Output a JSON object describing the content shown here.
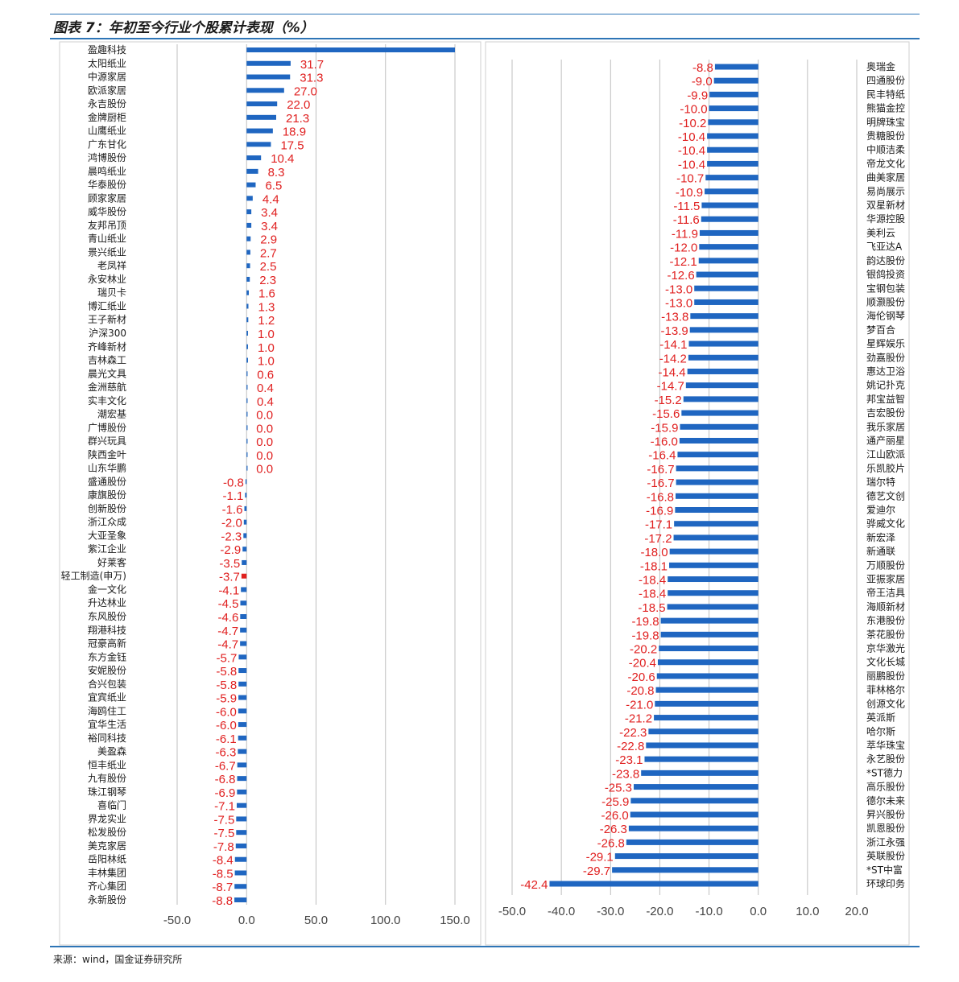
{
  "title": "图表 7：年初至今行业个股累计表现（%）",
  "source": "来源：wind，国金证券研究所",
  "colors": {
    "bar": "#1f66c1",
    "highlight": "#e0201e",
    "label": "#e02020",
    "grid": "#bfbfbf",
    "rule": "#2e75b6"
  },
  "chart_data": [
    {
      "type": "bar",
      "orientation": "horizontal",
      "xlim": [
        -50,
        150
      ],
      "xticks": [
        "-50.0",
        "0.0",
        "50.0",
        "100.0",
        "150.0"
      ],
      "grid": true,
      "categories": [
        "盈趣科技",
        "太阳纸业",
        "中源家居",
        "欧派家居",
        "永吉股份",
        "金牌厨柜",
        "山鹰纸业",
        "广东甘化",
        "鸿博股份",
        "晨鸣纸业",
        "华泰股份",
        "顾家家居",
        "威华股份",
        "友邦吊顶",
        "青山纸业",
        "景兴纸业",
        "老凤祥",
        "永安林业",
        "瑞贝卡",
        "博汇纸业",
        "王子新材",
        "沪深300",
        "齐峰新材",
        "吉林森工",
        "晨光文具",
        "金洲慈航",
        "实丰文化",
        "潮宏基",
        "广博股份",
        "群兴玩具",
        "陕西金叶",
        "山东华鹏",
        "盛通股份",
        "康旗股份",
        "创新股份",
        "浙江众成",
        "大亚圣象",
        "紫江企业",
        "好莱客",
        "轻工制造(申万)",
        "金一文化",
        "升达林业",
        "东风股份",
        "翔港科技",
        "冠豪高新",
        "东方金钰",
        "安妮股份",
        "合兴包装",
        "宜宾纸业",
        "海鸥住工",
        "宜华生活",
        "裕同科技",
        "美盈森",
        "恒丰纸业",
        "九有股份",
        "珠江钢琴",
        "喜临门",
        "界龙实业",
        "松发股份",
        "美克家居",
        "岳阳林纸",
        "丰林集团",
        "齐心集团",
        "永新股份"
      ],
      "values": [
        150,
        31.7,
        31.3,
        27.0,
        22.0,
        21.3,
        18.9,
        17.5,
        10.4,
        8.3,
        6.5,
        4.4,
        3.4,
        3.4,
        2.9,
        2.7,
        2.5,
        2.3,
        1.6,
        1.3,
        1.2,
        1.0,
        1.0,
        1.0,
        0.6,
        0.4,
        0.4,
        0.0,
        0.0,
        0.0,
        0.0,
        0.0,
        -0.8,
        -1.1,
        -1.6,
        -2.0,
        -2.3,
        -2.9,
        -3.5,
        -3.7,
        -4.1,
        -4.5,
        -4.6,
        -4.7,
        -4.7,
        -5.7,
        -5.8,
        -5.8,
        -5.9,
        -6.0,
        -6.0,
        -6.1,
        -6.3,
        -6.7,
        -6.8,
        -6.9,
        -7.1,
        -7.5,
        -7.5,
        -7.8,
        -8.4,
        -8.5,
        -8.7,
        -8.8
      ],
      "value_labels": [
        "",
        "31.7",
        "31.3",
        "27.0",
        "22.0",
        "21.3",
        "18.9",
        "17.5",
        "10.4",
        "8.3",
        "6.5",
        "4.4",
        "3.4",
        "3.4",
        "2.9",
        "2.7",
        "2.5",
        "2.3",
        "1.6",
        "1.3",
        "1.2",
        "1.0",
        "1.0",
        "1.0",
        "0.6",
        "0.4",
        "0.4",
        "0.0",
        "0.0",
        "0.0",
        "0.0",
        "0.0",
        "-0.8",
        "-1.1",
        "-1.6",
        "-2.0",
        "-2.3",
        "-2.9",
        "-3.5",
        "-3.7",
        "-4.1",
        "-4.5",
        "-4.6",
        "-4.7",
        "-4.7",
        "-5.7",
        "-5.8",
        "-5.8",
        "-5.9",
        "-6.0",
        "-6.0",
        "-6.1",
        "-6.3",
        "-6.7",
        "-6.8",
        "-6.9",
        "-7.1",
        "-7.5",
        "-7.5",
        "-7.8",
        "-8.4",
        "-8.5",
        "-8.7",
        "-8.8"
      ],
      "highlight": [
        "轻工制造(申万)"
      ]
    },
    {
      "type": "bar",
      "orientation": "horizontal",
      "xlim": [
        -50,
        20
      ],
      "xticks": [
        "-50.0",
        "-40.0",
        "-30.0",
        "-20.0",
        "-10.0",
        "0.0",
        "10.0",
        "20.0"
      ],
      "grid": true,
      "categories": [
        "奥瑞金",
        "四通股份",
        "民丰特纸",
        "熊猫金控",
        "明牌珠宝",
        "贵糖股份",
        "中顺洁柔",
        "帝龙文化",
        "曲美家居",
        "易尚展示",
        "双星新材",
        "华源控股",
        "美利云",
        "飞亚达A",
        "韵达股份",
        "银鸽投资",
        "宝钢包装",
        "顺灏股份",
        "海伦钢琴",
        "梦百合",
        "星辉娱乐",
        "劲嘉股份",
        "惠达卫浴",
        "姚记扑克",
        "邦宝益智",
        "吉宏股份",
        "我乐家居",
        "通产丽星",
        "江山欧派",
        "乐凯胶片",
        "瑞尔特",
        "德艺文创",
        "爱迪尔",
        "骅威文化",
        "新宏泽",
        "新通联",
        "万顺股份",
        "亚振家居",
        "帝王洁具",
        "海顺新材",
        "东港股份",
        "茶花股份",
        "京华激光",
        "文化长城",
        "丽鹏股份",
        "菲林格尔",
        "创源文化",
        "英派斯",
        "哈尔斯",
        "萃华珠宝",
        "永艺股份",
        "*ST德力",
        "高乐股份",
        "德尔未来",
        "昇兴股份",
        "凯恩股份",
        "浙江永强",
        "英联股份",
        "*ST中富",
        "环球印务"
      ],
      "values": [
        -8.8,
        -9.0,
        -9.9,
        -10.0,
        -10.2,
        -10.4,
        -10.4,
        -10.4,
        -10.7,
        -10.9,
        -11.5,
        -11.6,
        -11.9,
        -12.0,
        -12.1,
        -12.6,
        -13.0,
        -13.0,
        -13.8,
        -13.9,
        -14.1,
        -14.2,
        -14.4,
        -14.7,
        -15.2,
        -15.6,
        -15.9,
        -16.0,
        -16.4,
        -16.7,
        -16.7,
        -16.8,
        -16.9,
        -17.1,
        -17.2,
        -18.0,
        -18.1,
        -18.4,
        -18.4,
        -18.5,
        -19.8,
        -19.8,
        -20.2,
        -20.4,
        -20.6,
        -20.8,
        -21.0,
        -21.2,
        -22.3,
        -22.8,
        -23.1,
        -23.8,
        -25.3,
        -25.9,
        -26.0,
        -26.3,
        -26.8,
        -29.1,
        -29.7,
        -42.4
      ],
      "value_labels": [
        "-8.8",
        "-9.0",
        "-9.9",
        "-10.0",
        "-10.2",
        "-10.4",
        "-10.4",
        "-10.4",
        "-10.7",
        "-10.9",
        "-11.5",
        "-11.6",
        "-11.9",
        "-12.0",
        "-12.1",
        "-12.6",
        "-13.0",
        "-13.0",
        "-13.8",
        "-13.9",
        "-14.1",
        "-14.2",
        "-14.4",
        "-14.7",
        "-15.2",
        "-15.6",
        "-15.9",
        "-16.0",
        "-16.4",
        "-16.7",
        "-16.7",
        "-16.8",
        "-16.9",
        "-17.1",
        "-17.2",
        "-18.0",
        "-18.1",
        "-18.4",
        "-18.4",
        "-18.5",
        "-19.8",
        "-19.8",
        "-20.2",
        "-20.4",
        "-20.6",
        "-20.8",
        "-21.0",
        "-21.2",
        "-22.3",
        "-22.8",
        "-23.1",
        "-23.8",
        "-25.3",
        "-25.9",
        "-26.0",
        "-26.3",
        "-26.8",
        "-29.1",
        "-29.7",
        "-42.4"
      ]
    }
  ]
}
